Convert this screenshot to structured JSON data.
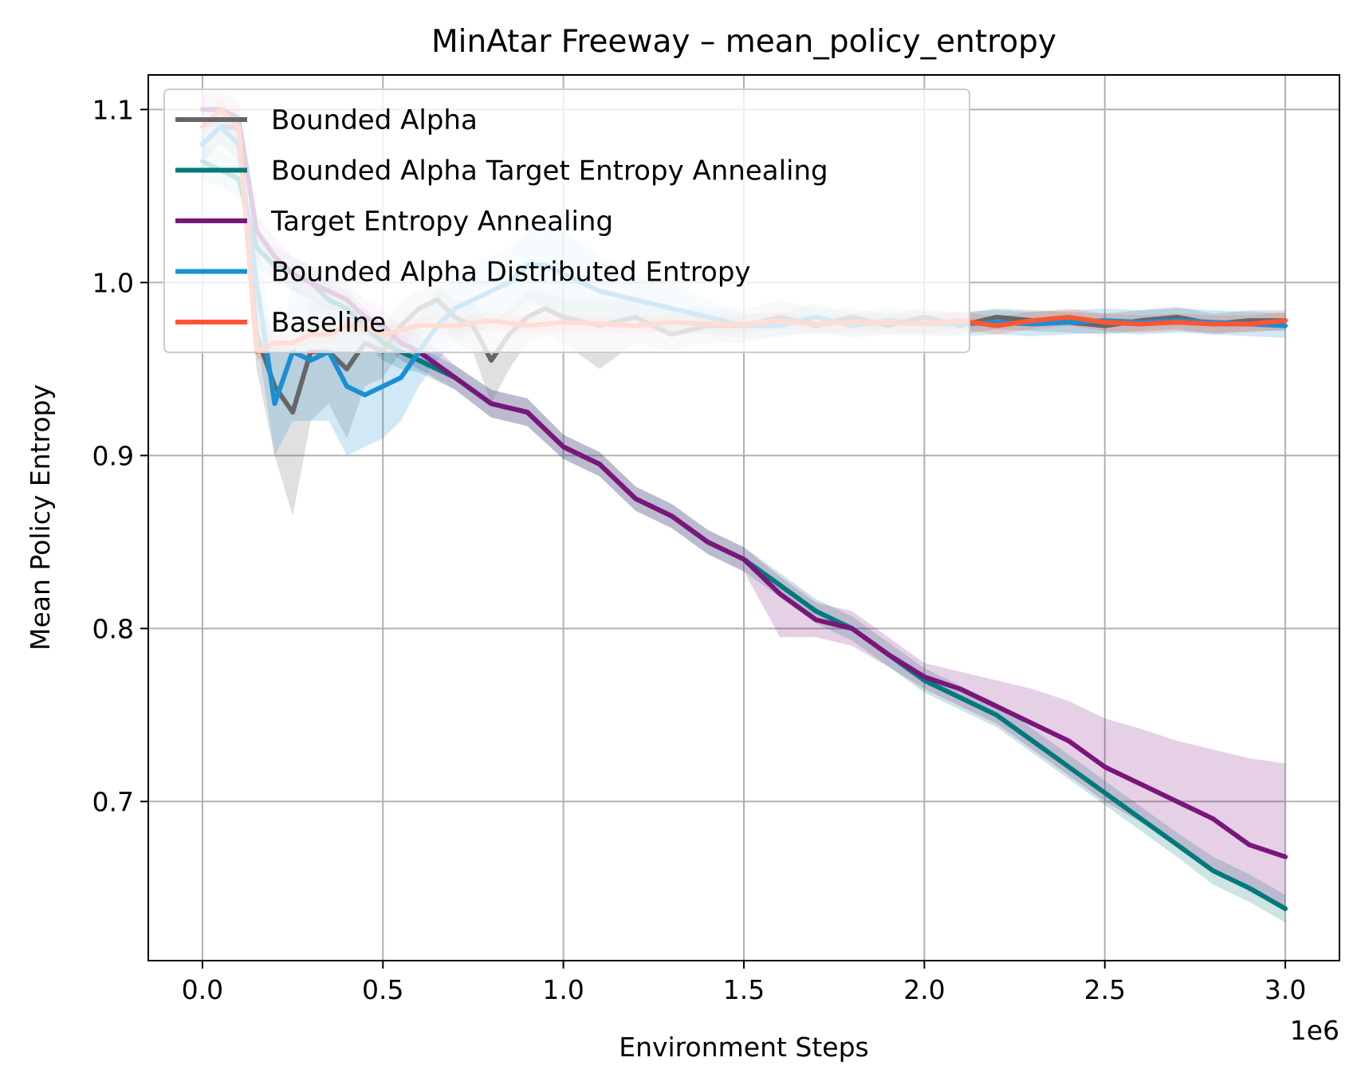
{
  "chart_data": {
    "type": "line",
    "title": "MinAtar Freeway – mean_policy_entropy",
    "xlabel": "Environment Steps",
    "ylabel": "Mean Policy Entropy",
    "x_offset_label": "1e6",
    "x_tick_labels": [
      "0.0",
      "0.5",
      "1.0",
      "1.5",
      "2.0",
      "2.5",
      "3.0"
    ],
    "y_tick_labels": [
      "0.7",
      "0.8",
      "0.9",
      "1.0",
      "1.1"
    ],
    "xlim": [
      -0.15,
      3.15
    ],
    "ylim": [
      0.608,
      1.12
    ],
    "x_scale_factor": 1000000,
    "grid": true,
    "legend_position": "upper left",
    "series": [
      {
        "name": "Bounded Alpha",
        "color": "#666666",
        "x": [
          0.0,
          0.05,
          0.1,
          0.15,
          0.2,
          0.25,
          0.3,
          0.35,
          0.4,
          0.45,
          0.5,
          0.55,
          0.6,
          0.65,
          0.7,
          0.75,
          0.8,
          0.85,
          0.9,
          0.95,
          1.0,
          1.1,
          1.2,
          1.3,
          1.4,
          1.5,
          1.6,
          1.7,
          1.8,
          1.9,
          2.0,
          2.1,
          2.2,
          2.3,
          2.4,
          2.5,
          2.6,
          2.7,
          2.8,
          2.9,
          3.0
        ],
        "y": [
          1.08,
          1.09,
          1.09,
          0.97,
          0.94,
          0.925,
          0.96,
          0.96,
          0.95,
          0.965,
          0.96,
          0.975,
          0.985,
          0.99,
          0.98,
          0.975,
          0.955,
          0.97,
          0.98,
          0.985,
          0.98,
          0.975,
          0.98,
          0.97,
          0.975,
          0.975,
          0.98,
          0.975,
          0.98,
          0.975,
          0.98,
          0.975,
          0.98,
          0.978,
          0.977,
          0.975,
          0.978,
          0.98,
          0.976,
          0.978,
          0.978
        ],
        "lower": [
          1.07,
          1.08,
          1.07,
          0.95,
          0.9,
          0.865,
          0.92,
          0.93,
          0.91,
          0.94,
          0.945,
          0.96,
          0.975,
          0.98,
          0.965,
          0.96,
          0.93,
          0.95,
          0.965,
          0.97,
          0.965,
          0.95,
          0.965,
          0.96,
          0.965,
          0.965,
          0.97,
          0.97,
          0.97,
          0.97,
          0.97,
          0.97,
          0.973,
          0.972,
          0.971,
          0.97,
          0.972,
          0.973,
          0.97,
          0.972,
          0.972
        ],
        "upper": [
          1.09,
          1.1,
          1.1,
          0.99,
          0.97,
          0.96,
          0.99,
          0.98,
          0.98,
          0.985,
          0.975,
          0.99,
          0.995,
          1.0,
          0.99,
          0.99,
          0.975,
          0.985,
          0.995,
          0.995,
          0.99,
          0.99,
          0.99,
          0.985,
          0.985,
          0.985,
          0.99,
          0.985,
          0.985,
          0.982,
          0.985,
          0.982,
          0.985,
          0.984,
          0.983,
          0.982,
          0.984,
          0.986,
          0.982,
          0.984,
          0.984
        ]
      },
      {
        "name": "Bounded Alpha Target Entropy Annealing",
        "color": "#007a7a",
        "x": [
          0.0,
          0.05,
          0.1,
          0.15,
          0.2,
          0.25,
          0.3,
          0.35,
          0.4,
          0.45,
          0.5,
          0.55,
          0.6,
          0.7,
          0.8,
          0.9,
          1.0,
          1.1,
          1.2,
          1.3,
          1.4,
          1.5,
          1.6,
          1.7,
          1.8,
          1.9,
          2.0,
          2.1,
          2.2,
          2.3,
          2.4,
          2.5,
          2.6,
          2.7,
          2.8,
          2.9,
          3.0
        ],
        "y": [
          1.07,
          1.065,
          1.06,
          1.02,
          1.01,
          1.005,
          1.0,
          0.99,
          0.985,
          0.975,
          0.965,
          0.96,
          0.955,
          0.945,
          0.93,
          0.925,
          0.905,
          0.895,
          0.875,
          0.865,
          0.85,
          0.84,
          0.825,
          0.81,
          0.8,
          0.785,
          0.77,
          0.76,
          0.75,
          0.735,
          0.72,
          0.705,
          0.69,
          0.675,
          0.66,
          0.65,
          0.638
        ],
        "lower": [
          1.06,
          1.055,
          1.05,
          1.01,
          1.0,
          0.995,
          0.99,
          0.98,
          0.975,
          0.965,
          0.955,
          0.95,
          0.948,
          0.938,
          0.922,
          0.917,
          0.898,
          0.888,
          0.868,
          0.858,
          0.843,
          0.833,
          0.818,
          0.803,
          0.793,
          0.778,
          0.763,
          0.753,
          0.743,
          0.728,
          0.713,
          0.698,
          0.683,
          0.668,
          0.652,
          0.642,
          0.63
        ],
        "upper": [
          1.08,
          1.075,
          1.07,
          1.03,
          1.02,
          1.015,
          1.01,
          1.0,
          0.995,
          0.985,
          0.975,
          0.97,
          0.962,
          0.952,
          0.938,
          0.933,
          0.912,
          0.902,
          0.882,
          0.872,
          0.857,
          0.847,
          0.832,
          0.817,
          0.807,
          0.792,
          0.777,
          0.767,
          0.757,
          0.742,
          0.727,
          0.712,
          0.697,
          0.682,
          0.668,
          0.658,
          0.646
        ]
      },
      {
        "name": "Target Entropy Annealing",
        "color": "#7b157b",
        "x": [
          0.0,
          0.05,
          0.1,
          0.15,
          0.2,
          0.25,
          0.3,
          0.35,
          0.4,
          0.45,
          0.5,
          0.55,
          0.6,
          0.7,
          0.8,
          0.9,
          1.0,
          1.1,
          1.2,
          1.3,
          1.4,
          1.5,
          1.6,
          1.7,
          1.8,
          1.9,
          2.0,
          2.1,
          2.2,
          2.3,
          2.4,
          2.5,
          2.6,
          2.7,
          2.8,
          2.9,
          3.0
        ],
        "y": [
          1.1,
          1.1,
          1.095,
          1.03,
          1.015,
          1.005,
          1.0,
          0.995,
          0.99,
          0.98,
          0.975,
          0.965,
          0.96,
          0.945,
          0.93,
          0.925,
          0.905,
          0.895,
          0.875,
          0.865,
          0.85,
          0.84,
          0.82,
          0.805,
          0.8,
          0.785,
          0.772,
          0.765,
          0.755,
          0.745,
          0.735,
          0.72,
          0.71,
          0.7,
          0.69,
          0.675,
          0.668
        ],
        "lower": [
          1.09,
          1.09,
          1.085,
          1.02,
          1.005,
          0.995,
          0.99,
          0.985,
          0.98,
          0.97,
          0.965,
          0.955,
          0.95,
          0.938,
          0.922,
          0.917,
          0.898,
          0.888,
          0.868,
          0.858,
          0.843,
          0.833,
          0.795,
          0.795,
          0.79,
          0.778,
          0.765,
          0.755,
          0.745,
          0.73,
          0.715,
          0.7,
          0.688,
          0.675,
          0.662,
          0.648,
          0.638
        ],
        "upper": [
          1.11,
          1.11,
          1.105,
          1.04,
          1.025,
          1.015,
          1.01,
          1.005,
          1.0,
          0.99,
          0.985,
          0.975,
          0.97,
          0.952,
          0.938,
          0.933,
          0.912,
          0.902,
          0.882,
          0.872,
          0.857,
          0.847,
          0.83,
          0.815,
          0.81,
          0.795,
          0.78,
          0.775,
          0.77,
          0.765,
          0.758,
          0.748,
          0.742,
          0.735,
          0.73,
          0.725,
          0.722
        ]
      },
      {
        "name": "Bounded Alpha Distributed Entropy",
        "color": "#1b8fd4",
        "x": [
          0.0,
          0.05,
          0.1,
          0.15,
          0.2,
          0.25,
          0.3,
          0.35,
          0.4,
          0.45,
          0.5,
          0.55,
          0.6,
          0.65,
          0.7,
          0.75,
          0.8,
          0.85,
          0.9,
          0.95,
          1.0,
          1.1,
          1.2,
          1.3,
          1.4,
          1.5,
          1.6,
          1.7,
          1.8,
          1.9,
          2.0,
          2.1,
          2.2,
          2.3,
          2.4,
          2.5,
          2.6,
          2.7,
          2.8,
          2.9,
          3.0
        ],
        "y": [
          1.08,
          1.09,
          1.08,
          1.0,
          0.93,
          0.96,
          0.955,
          0.96,
          0.94,
          0.935,
          0.94,
          0.945,
          0.96,
          0.975,
          0.985,
          0.99,
          0.995,
          1.0,
          1.01,
          1.01,
          1.005,
          0.995,
          0.99,
          0.985,
          0.98,
          0.975,
          0.975,
          0.98,
          0.975,
          0.978,
          0.976,
          0.976,
          0.977,
          0.976,
          0.977,
          0.978,
          0.977,
          0.978,
          0.977,
          0.976,
          0.975
        ],
        "lower": [
          1.07,
          1.08,
          1.07,
          0.97,
          0.9,
          0.92,
          0.92,
          0.92,
          0.9,
          0.905,
          0.91,
          0.92,
          0.94,
          0.955,
          0.965,
          0.97,
          0.975,
          0.98,
          0.99,
          0.985,
          0.98,
          0.975,
          0.975,
          0.97,
          0.97,
          0.968,
          0.968,
          0.972,
          0.968,
          0.97,
          0.969,
          0.969,
          0.97,
          0.969,
          0.97,
          0.971,
          0.97,
          0.971,
          0.97,
          0.969,
          0.968
        ],
        "upper": [
          1.09,
          1.1,
          1.095,
          1.03,
          0.96,
          1.0,
          0.99,
          0.99,
          0.98,
          0.965,
          0.97,
          0.97,
          0.98,
          0.995,
          1.005,
          1.01,
          1.015,
          1.02,
          1.03,
          1.035,
          1.03,
          1.015,
          1.005,
          1.0,
          0.99,
          0.982,
          0.982,
          0.988,
          0.982,
          0.986,
          0.983,
          0.983,
          0.984,
          0.983,
          0.984,
          0.985,
          0.984,
          0.985,
          0.984,
          0.983,
          0.982
        ]
      },
      {
        "name": "Baseline",
        "color": "#ff5533",
        "x": [
          0.0,
          0.05,
          0.1,
          0.15,
          0.2,
          0.25,
          0.3,
          0.35,
          0.4,
          0.45,
          0.5,
          0.6,
          0.7,
          0.8,
          0.9,
          1.0,
          1.1,
          1.2,
          1.3,
          1.4,
          1.5,
          1.6,
          1.7,
          1.8,
          1.9,
          2.0,
          2.1,
          2.2,
          2.3,
          2.4,
          2.5,
          2.6,
          2.7,
          2.8,
          2.9,
          3.0
        ],
        "y": [
          1.09,
          1.1,
          1.09,
          0.96,
          0.965,
          0.965,
          0.97,
          0.97,
          0.975,
          0.975,
          0.97,
          0.975,
          0.975,
          0.978,
          0.975,
          0.977,
          0.976,
          0.975,
          0.977,
          0.976,
          0.976,
          0.978,
          0.976,
          0.977,
          0.977,
          0.976,
          0.978,
          0.975,
          0.978,
          0.98,
          0.977,
          0.976,
          0.977,
          0.976,
          0.976,
          0.978
        ],
        "lower": [
          1.085,
          1.095,
          1.085,
          0.955,
          0.96,
          0.96,
          0.965,
          0.965,
          0.97,
          0.97,
          0.965,
          0.97,
          0.97,
          0.973,
          0.97,
          0.972,
          0.971,
          0.97,
          0.972,
          0.971,
          0.971,
          0.973,
          0.971,
          0.972,
          0.972,
          0.971,
          0.973,
          0.97,
          0.973,
          0.975,
          0.972,
          0.971,
          0.972,
          0.971,
          0.971,
          0.973
        ],
        "upper": [
          1.095,
          1.105,
          1.095,
          0.965,
          0.97,
          0.97,
          0.975,
          0.975,
          0.98,
          0.98,
          0.975,
          0.98,
          0.98,
          0.983,
          0.98,
          0.982,
          0.981,
          0.98,
          0.982,
          0.981,
          0.981,
          0.983,
          0.981,
          0.982,
          0.982,
          0.981,
          0.983,
          0.98,
          0.983,
          0.985,
          0.982,
          0.981,
          0.982,
          0.981,
          0.981,
          0.983
        ]
      }
    ]
  }
}
